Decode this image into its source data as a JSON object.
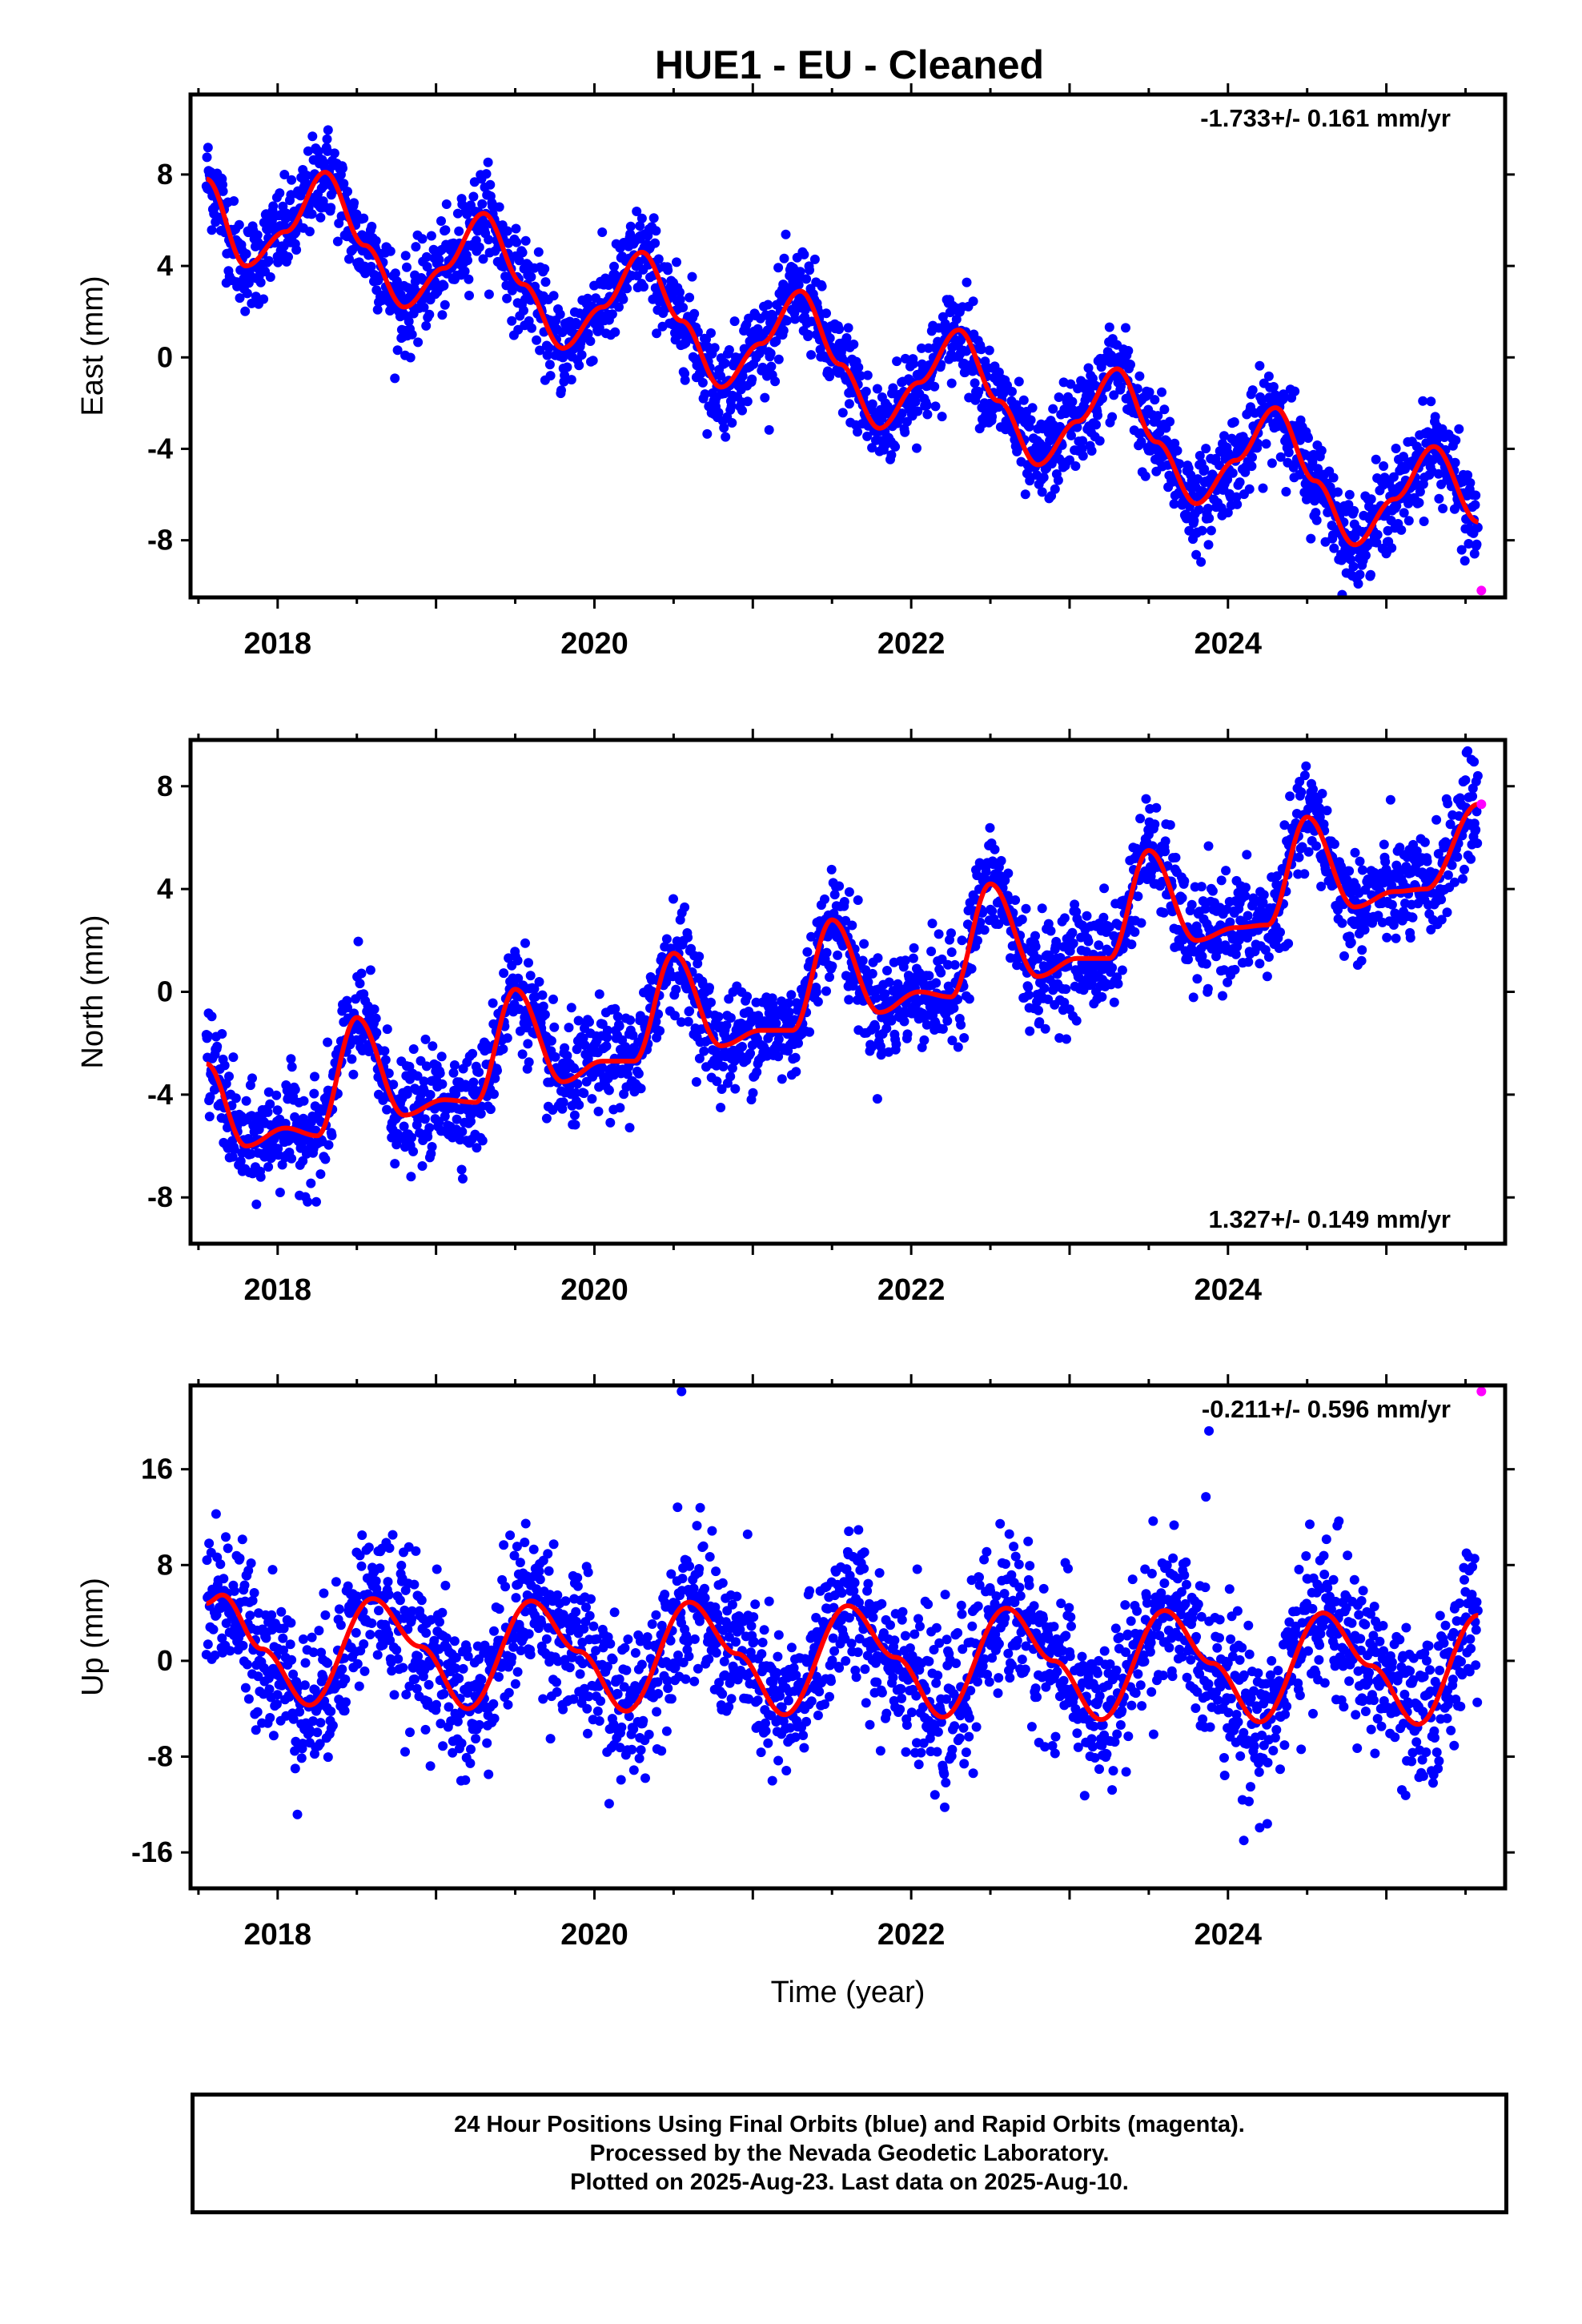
{
  "title": "HUE1  - EU - Cleaned",
  "colors": {
    "final_orbits": "#0000ff",
    "rapid_orbits": "#ff00ff",
    "model_fit": "#ff0000"
  },
  "caption": {
    "line1": "24 Hour Positions Using Final Orbits (blue) and Rapid Orbits (magenta).",
    "line2": "Processed by the Nevada Geodetic Laboratory.",
    "line3": "Plotted on 2025-Aug-23. Last data on 2025-Aug-10."
  },
  "chart_data": [
    {
      "type": "scatter",
      "component": "east",
      "ylabel": "East (mm)",
      "xlabel": "",
      "xlim": [
        2017.45,
        2025.75
      ],
      "ylim": [
        -10.5,
        11.5
      ],
      "x_ticks": [
        2018,
        2020,
        2022,
        2024
      ],
      "x_tick_labels": [
        "2018",
        "2020",
        "2022",
        "2024"
      ],
      "y_ticks": [
        -8,
        -4,
        0,
        4,
        8
      ],
      "y_tick_labels": [
        "-8",
        "-4",
        "0",
        "4",
        "8"
      ],
      "rate_text": "-1.733+/- 0.161 mm/yr",
      "rate_position": "top-right",
      "model": {
        "x": [
          2017.55,
          2017.8,
          2018.05,
          2018.3,
          2018.55,
          2018.8,
          2019.05,
          2019.3,
          2019.55,
          2019.8,
          2020.05,
          2020.3,
          2020.55,
          2020.8,
          2021.05,
          2021.3,
          2021.55,
          2021.8,
          2022.05,
          2022.3,
          2022.55,
          2022.8,
          2023.05,
          2023.3,
          2023.55,
          2023.8,
          2024.05,
          2024.3,
          2024.55,
          2024.8,
          2025.05,
          2025.3,
          2025.58
        ],
        "y": [
          7.8,
          4.0,
          5.5,
          8.1,
          4.9,
          2.2,
          3.9,
          6.3,
          3.2,
          0.4,
          2.2,
          4.6,
          1.6,
          -1.3,
          0.6,
          2.9,
          -0.3,
          -3.1,
          -1.1,
          1.2,
          -1.9,
          -4.7,
          -2.8,
          -0.5,
          -3.7,
          -6.4,
          -4.5,
          -2.2,
          -5.4,
          -8.2,
          -6.2,
          -3.9,
          -7.2
        ]
      },
      "rapid_points": {
        "x": [
          2025.6
        ],
        "y": [
          -10.2
        ]
      }
    },
    {
      "type": "scatter",
      "component": "north",
      "ylabel": "North (mm)",
      "xlabel": "",
      "xlim": [
        2017.45,
        2025.75
      ],
      "ylim": [
        -9.8,
        9.8
      ],
      "x_ticks": [
        2018,
        2020,
        2022,
        2024
      ],
      "x_tick_labels": [
        "2018",
        "2020",
        "2022",
        "2024"
      ],
      "y_ticks": [
        -8,
        -4,
        0,
        4,
        8
      ],
      "y_tick_labels": [
        "-8",
        "-4",
        "0",
        "4",
        "8"
      ],
      "rate_text": "1.327+/- 0.149 mm/yr",
      "rate_position": "bottom-right",
      "model": {
        "x": [
          2017.55,
          2017.8,
          2018.05,
          2018.25,
          2018.5,
          2018.8,
          2019.05,
          2019.25,
          2019.5,
          2019.8,
          2020.05,
          2020.25,
          2020.5,
          2020.8,
          2021.05,
          2021.25,
          2021.5,
          2021.8,
          2022.05,
          2022.25,
          2022.5,
          2022.8,
          2023.05,
          2023.25,
          2023.5,
          2023.8,
          2024.05,
          2024.25,
          2024.5,
          2024.8,
          2025.05,
          2025.25,
          2025.58
        ],
        "y": [
          -2.8,
          -6.0,
          -5.3,
          -5.6,
          -1.0,
          -4.8,
          -4.2,
          -4.3,
          0.1,
          -3.5,
          -2.7,
          -2.7,
          1.5,
          -2.1,
          -1.5,
          -1.5,
          2.8,
          -0.8,
          0.0,
          -0.2,
          4.2,
          0.6,
          1.3,
          1.3,
          5.5,
          2.0,
          2.5,
          2.6,
          6.8,
          3.3,
          3.9,
          4.0,
          7.3
        ]
      },
      "rapid_points": {
        "x": [
          2025.6
        ],
        "y": [
          7.3
        ]
      }
    },
    {
      "type": "scatter",
      "component": "up",
      "ylabel": "Up (mm)",
      "xlabel": "Time (year)",
      "xlim": [
        2017.45,
        2025.75
      ],
      "ylim": [
        -19,
        23
      ],
      "x_ticks": [
        2018,
        2020,
        2022,
        2024
      ],
      "x_tick_labels": [
        "2018",
        "2020",
        "2022",
        "2024"
      ],
      "y_ticks": [
        -16,
        -8,
        0,
        8,
        16
      ],
      "y_tick_labels": [
        "-16",
        "-8",
        "0",
        "8",
        "16"
      ],
      "rate_text": "-0.211+/- 0.596 mm/yr",
      "rate_position": "top-right",
      "model": {
        "x": [
          2017.55,
          2017.65,
          2017.9,
          2018.2,
          2018.6,
          2018.9,
          2019.2,
          2019.6,
          2019.9,
          2020.2,
          2020.6,
          2020.9,
          2021.2,
          2021.6,
          2021.9,
          2022.2,
          2022.6,
          2022.9,
          2023.2,
          2023.6,
          2023.9,
          2024.2,
          2024.6,
          2024.9,
          2025.2,
          2025.58
        ],
        "y": [
          4.8,
          5.5,
          1.0,
          -3.7,
          5.2,
          1.2,
          -4.0,
          5.0,
          0.8,
          -4.2,
          4.9,
          0.6,
          -4.5,
          4.6,
          0.3,
          -4.7,
          4.4,
          0.0,
          -4.9,
          4.2,
          -0.2,
          -5.1,
          4.0,
          -0.4,
          -5.3,
          3.8
        ]
      },
      "rapid_points": {
        "x": [
          2025.6
        ],
        "y": [
          22.5
        ]
      },
      "outliers": {
        "x": [
          2020.55,
          2023.88,
          2024.1
        ],
        "y": [
          22.5,
          19.2,
          -15.0
        ]
      }
    }
  ]
}
